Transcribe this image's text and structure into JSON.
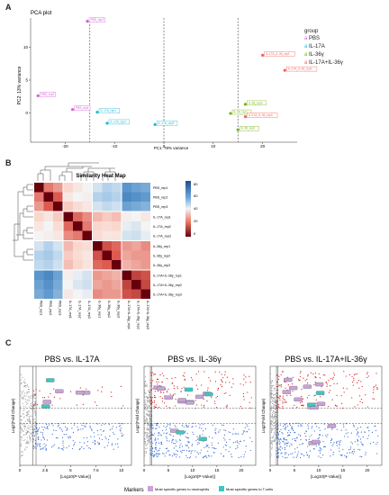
{
  "panels": {
    "a": {
      "letter": "A",
      "title": "PCA plot",
      "xlabel": "PC1: 78% variance",
      "ylabel": "PC2: 13% variance",
      "legend_title": "group",
      "groups": [
        {
          "name": "PBS",
          "color": "#d45fd4"
        },
        {
          "name": "IL-17A",
          "color": "#22b8d8"
        },
        {
          "name": "IL-36γ",
          "color": "#79b21b"
        },
        {
          "name": "IL-17A+IL-36γ",
          "color": "#f4625a"
        }
      ]
    },
    "b": {
      "letter": "B",
      "title": "Similarity Heat Map",
      "colorbar_ticks": [
        "80",
        "60",
        "40",
        "20",
        "0"
      ],
      "samples": [
        "PBS_rep1",
        "PBS_rep2",
        "PBS_rep3",
        "IL-17A_rep1",
        "IL-17A_rep2",
        "IL-17A_rep3",
        "IL-36y_rep1",
        "IL-36y_rep2",
        "IL-36y_rep3",
        "IL-17A+IL-36y_rep1",
        "IL-17A+IL-36y_rep2",
        "IL-17A+IL-36y_rep3"
      ]
    },
    "c": {
      "letter": "C",
      "ylabel": "Log2(Fold Change)",
      "xlabel": "[Log10(P-Value)]",
      "plots": [
        {
          "title": "PBS vs. IL-17A"
        },
        {
          "title": "PBS vs. IL-36γ"
        },
        {
          "title": "PBS vs. IL-17A+IL-36γ"
        }
      ],
      "legend": {
        "title": "Markers",
        "items": [
          {
            "label": "Most specific genes to neutrophils",
            "color": "#c9a2d8"
          },
          {
            "label": "Most specific genes to T-cells",
            "color": "#3cc7c2"
          }
        ]
      }
    }
  },
  "chart_data": [
    {
      "type": "scatter",
      "title": "PCA plot",
      "xlabel": "PC1: 78% variance",
      "ylabel": "PC2: 13% variance",
      "xlim": [
        -27,
        27
      ],
      "ylim": [
        -4.5,
        14.5
      ],
      "xticks": [
        -20,
        -10,
        0,
        10,
        20
      ],
      "yticks": [
        0,
        5,
        10
      ],
      "vlines": [
        -15,
        0,
        15
      ],
      "grid": false,
      "legend_position": "right",
      "series": [
        {
          "name": "PBS",
          "color": "#d45fd4",
          "points": [
            {
              "x": -15.5,
              "y": 14.0,
              "label": "PBS_rep3"
            },
            {
              "x": -25.5,
              "y": 2.6,
              "label": "PBS_rep2"
            },
            {
              "x": -18.5,
              "y": 0.5,
              "label": "PBS_rep1"
            }
          ]
        },
        {
          "name": "IL-17A",
          "color": "#22b8d8",
          "points": [
            {
              "x": -13.5,
              "y": 0.1,
              "label": "IL-17A_rep1"
            },
            {
              "x": -11.5,
              "y": -1.6,
              "label": "IL-17A_rep2"
            },
            {
              "x": -1.8,
              "y": -1.8,
              "label": "IL-17A_rep3"
            }
          ]
        },
        {
          "name": "IL-36γ",
          "color": "#79b21b",
          "points": [
            {
              "x": 13.5,
              "y": -0.1,
              "label": "IL-36_rep1"
            },
            {
              "x": 15.0,
              "y": -2.6,
              "label": "IL-36_rep2"
            },
            {
              "x": 16.5,
              "y": 1.3,
              "label": "IL-36_rep3"
            }
          ]
        },
        {
          "name": "IL-17A+IL-36γ",
          "color": "#f4625a",
          "points": [
            {
              "x": 20.0,
              "y": 8.8,
              "label": "IL-17A_IL-36_rep1"
            },
            {
              "x": 24.5,
              "y": 6.5,
              "label": "IL-17A_IL-36_rep2"
            },
            {
              "x": 16.5,
              "y": -0.6,
              "label": "IL-17A_IL-36_rep3"
            }
          ]
        }
      ]
    },
    {
      "type": "heatmap",
      "title": "Similarity Heat Map",
      "rows": [
        "PBS_rep1",
        "PBS_rep2",
        "PBS_rep3",
        "IL-17A_rep1",
        "IL-17A_rep2",
        "IL-17A_rep3",
        "IL-36y_rep1",
        "IL-36y_rep2",
        "IL-36y_rep3",
        "IL-17A+IL-36y_rep1",
        "IL-17A+IL-36y_rep2",
        "IL-17A+IL-36y_rep3"
      ],
      "columns": [
        "PBS_rep1",
        "PBS_rep2",
        "PBS_rep3",
        "IL-17A_rep1",
        "IL-17A_rep2",
        "IL-17A_rep3",
        "IL-36y_rep1",
        "IL-36y_rep2",
        "IL-36y_rep3",
        "IL-17A+IL-36y_rep1",
        "IL-17A+IL-36y_rep2",
        "IL-17A+IL-36y_rep3"
      ],
      "colorbar_range": [
        0,
        90
      ],
      "values": [
        [
          0,
          25,
          30,
          40,
          45,
          50,
          55,
          60,
          58,
          75,
          72,
          70
        ],
        [
          25,
          0,
          20,
          45,
          50,
          48,
          60,
          62,
          60,
          78,
          76,
          74
        ],
        [
          30,
          20,
          0,
          38,
          42,
          45,
          55,
          58,
          56,
          72,
          70,
          68
        ],
        [
          40,
          45,
          38,
          0,
          22,
          28,
          35,
          38,
          36,
          48,
          50,
          46
        ],
        [
          45,
          50,
          42,
          22,
          0,
          25,
          40,
          42,
          40,
          52,
          54,
          50
        ],
        [
          50,
          48,
          45,
          28,
          25,
          0,
          42,
          45,
          44,
          55,
          56,
          52
        ],
        [
          55,
          60,
          55,
          35,
          40,
          42,
          0,
          18,
          22,
          30,
          32,
          28
        ],
        [
          60,
          62,
          58,
          38,
          42,
          45,
          18,
          0,
          20,
          32,
          30,
          30
        ],
        [
          58,
          60,
          56,
          36,
          40,
          44,
          22,
          20,
          0,
          34,
          32,
          30
        ],
        [
          75,
          78,
          72,
          48,
          52,
          55,
          30,
          32,
          34,
          0,
          15,
          18
        ],
        [
          72,
          76,
          70,
          50,
          54,
          56,
          32,
          30,
          32,
          15,
          0,
          16
        ],
        [
          70,
          74,
          68,
          46,
          50,
          52,
          28,
          30,
          30,
          18,
          16,
          0
        ]
      ]
    },
    {
      "type": "scatter",
      "title": "PBS vs. IL-17A",
      "xlabel": "[Log10(P-Value)]",
      "ylabel": "Log2(Fold Change)",
      "xticks": [
        0,
        2.5,
        5,
        7.5,
        10
      ],
      "xlim": [
        0,
        11
      ],
      "ylim": [
        -4,
        4
      ]
    },
    {
      "type": "scatter",
      "title": "PBS vs. IL-36γ",
      "xlabel": "[Log10(P-Value)]",
      "ylabel": "Log2(Fold Change)",
      "xticks": [
        0,
        5,
        10,
        15,
        20
      ],
      "xlim": [
        0,
        23
      ],
      "ylim": [
        -4,
        4
      ]
    },
    {
      "type": "scatter",
      "title": "PBS vs. IL-17A+IL-36γ",
      "xlabel": "[Log10(P-Value)]",
      "ylabel": "Log2(Fold Change)",
      "xticks": [
        0,
        5,
        10,
        15,
        20
      ],
      "xlim": [
        0,
        23
      ],
      "ylim": [
        -4,
        4
      ]
    }
  ]
}
